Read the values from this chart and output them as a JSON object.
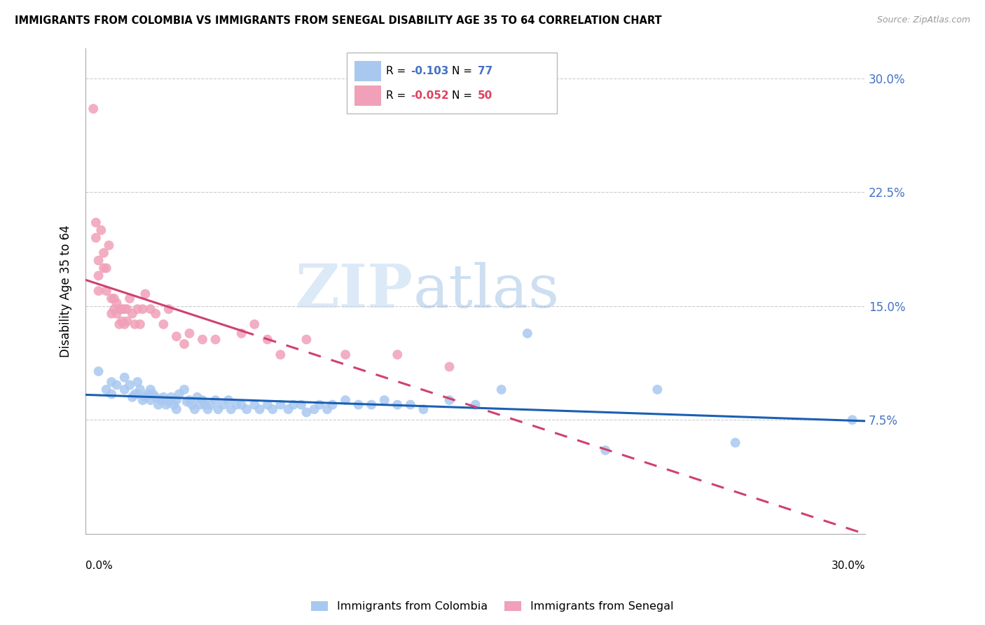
{
  "title": "IMMIGRANTS FROM COLOMBIA VS IMMIGRANTS FROM SENEGAL DISABILITY AGE 35 TO 64 CORRELATION CHART",
  "source": "Source: ZipAtlas.com",
  "ylabel": "Disability Age 35 to 64",
  "yticks": [
    0.075,
    0.15,
    0.225,
    0.3
  ],
  "ytick_labels": [
    "7.5%",
    "15.0%",
    "22.5%",
    "30.0%"
  ],
  "xlim": [
    0.0,
    0.3
  ],
  "ylim": [
    0.0,
    0.32
  ],
  "colombia_R": -0.103,
  "colombia_N": 77,
  "senegal_R": -0.052,
  "senegal_N": 50,
  "colombia_color": "#a8c8f0",
  "senegal_color": "#f0a0b8",
  "colombia_line_color": "#1a5fb4",
  "senegal_line_color": "#d04070",
  "watermark_zip": "ZIP",
  "watermark_atlas": "atlas",
  "colombia_x": [
    0.005,
    0.008,
    0.01,
    0.01,
    0.012,
    0.015,
    0.015,
    0.017,
    0.018,
    0.019,
    0.02,
    0.02,
    0.021,
    0.022,
    0.023,
    0.024,
    0.025,
    0.025,
    0.026,
    0.027,
    0.028,
    0.029,
    0.03,
    0.031,
    0.032,
    0.033,
    0.034,
    0.035,
    0.035,
    0.036,
    0.038,
    0.039,
    0.04,
    0.041,
    0.042,
    0.043,
    0.044,
    0.045,
    0.046,
    0.047,
    0.048,
    0.05,
    0.051,
    0.053,
    0.055,
    0.056,
    0.058,
    0.06,
    0.062,
    0.065,
    0.067,
    0.07,
    0.072,
    0.075,
    0.078,
    0.08,
    0.083,
    0.085,
    0.088,
    0.09,
    0.093,
    0.095,
    0.1,
    0.105,
    0.11,
    0.115,
    0.12,
    0.125,
    0.13,
    0.14,
    0.15,
    0.16,
    0.17,
    0.2,
    0.22,
    0.25,
    0.295
  ],
  "colombia_y": [
    0.107,
    0.095,
    0.1,
    0.092,
    0.098,
    0.103,
    0.095,
    0.098,
    0.09,
    0.092,
    0.1,
    0.092,
    0.095,
    0.088,
    0.09,
    0.092,
    0.095,
    0.088,
    0.092,
    0.09,
    0.085,
    0.088,
    0.09,
    0.085,
    0.087,
    0.09,
    0.085,
    0.088,
    0.082,
    0.092,
    0.095,
    0.087,
    0.088,
    0.085,
    0.082,
    0.09,
    0.085,
    0.088,
    0.085,
    0.082,
    0.085,
    0.088,
    0.082,
    0.085,
    0.088,
    0.082,
    0.085,
    0.085,
    0.082,
    0.085,
    0.082,
    0.085,
    0.082,
    0.085,
    0.082,
    0.085,
    0.085,
    0.08,
    0.082,
    0.085,
    0.082,
    0.085,
    0.088,
    0.085,
    0.085,
    0.088,
    0.085,
    0.085,
    0.082,
    0.088,
    0.085,
    0.095,
    0.132,
    0.055,
    0.095,
    0.06,
    0.075
  ],
  "senegal_x": [
    0.003,
    0.004,
    0.004,
    0.005,
    0.005,
    0.005,
    0.006,
    0.007,
    0.007,
    0.008,
    0.008,
    0.009,
    0.01,
    0.01,
    0.011,
    0.011,
    0.012,
    0.012,
    0.013,
    0.013,
    0.014,
    0.014,
    0.015,
    0.015,
    0.016,
    0.016,
    0.017,
    0.018,
    0.019,
    0.02,
    0.021,
    0.022,
    0.023,
    0.025,
    0.027,
    0.03,
    0.032,
    0.035,
    0.038,
    0.04,
    0.045,
    0.05,
    0.06,
    0.065,
    0.07,
    0.075,
    0.085,
    0.1,
    0.12,
    0.14
  ],
  "senegal_y": [
    0.28,
    0.205,
    0.195,
    0.18,
    0.17,
    0.16,
    0.2,
    0.185,
    0.175,
    0.175,
    0.16,
    0.19,
    0.155,
    0.145,
    0.155,
    0.148,
    0.152,
    0.145,
    0.148,
    0.138,
    0.148,
    0.14,
    0.148,
    0.138,
    0.148,
    0.14,
    0.155,
    0.145,
    0.138,
    0.148,
    0.138,
    0.148,
    0.158,
    0.148,
    0.145,
    0.138,
    0.148,
    0.13,
    0.125,
    0.132,
    0.128,
    0.128,
    0.132,
    0.138,
    0.128,
    0.118,
    0.128,
    0.118,
    0.118,
    0.11
  ]
}
